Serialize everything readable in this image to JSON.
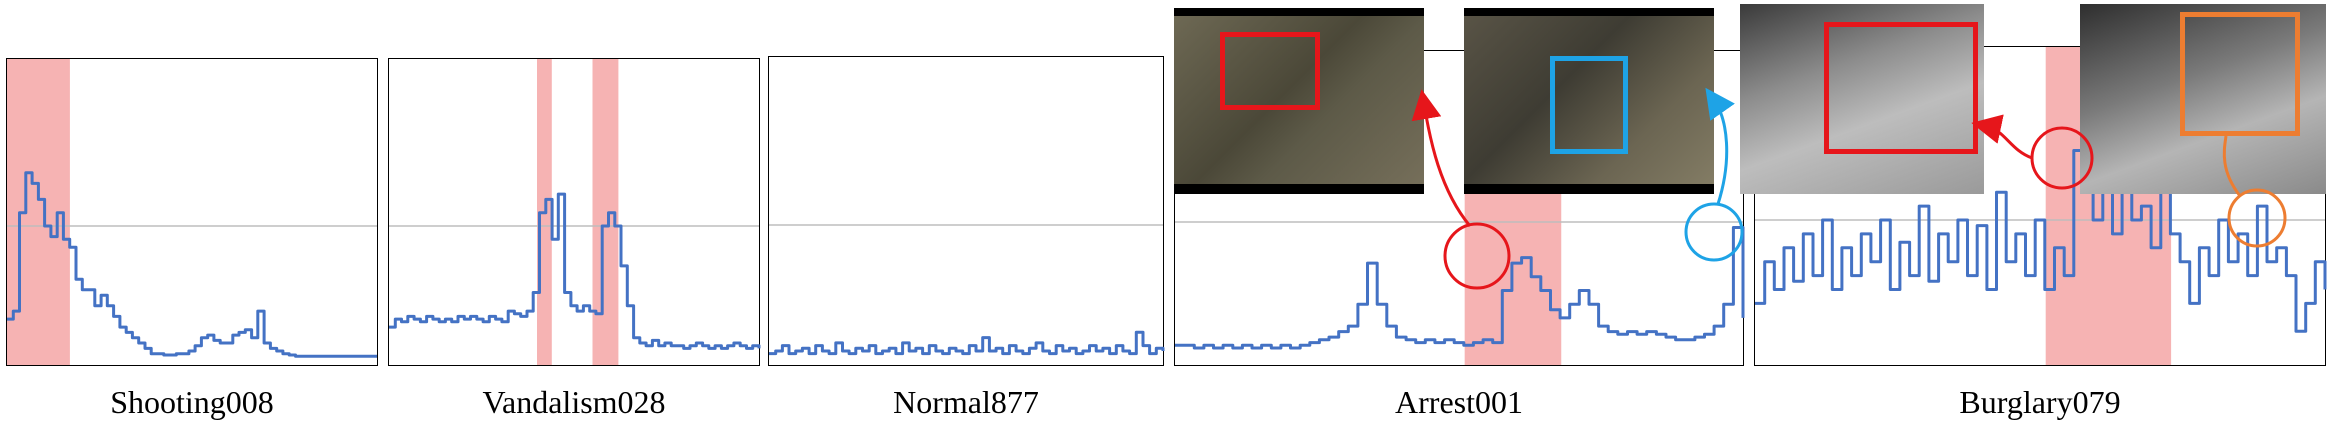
{
  "chart_data": [
    {
      "type": "line",
      "caption": "Shooting008",
      "ylim": [
        0,
        1
      ],
      "threshold": 0.5,
      "highlight_ranges": [
        [
          0,
          0.17
        ]
      ],
      "series": [
        {
          "color": "#4472c4",
          "values": [
            0.15,
            0.18,
            0.55,
            0.7,
            0.66,
            0.6,
            0.5,
            0.46,
            0.55,
            0.45,
            0.42,
            0.3,
            0.26,
            0.26,
            0.2,
            0.24,
            0.2,
            0.16,
            0.12,
            0.1,
            0.08,
            0.06,
            0.04,
            0.02,
            0.02,
            0.015,
            0.015,
            0.02,
            0.02,
            0.03,
            0.05,
            0.08,
            0.09,
            0.07,
            0.06,
            0.06,
            0.09,
            0.1,
            0.11,
            0.08,
            0.18,
            0.06,
            0.04,
            0.03,
            0.02,
            0.015,
            0.01,
            0.01,
            0.01,
            0.01,
            0.01,
            0.01,
            0.01,
            0.01,
            0.01,
            0.01,
            0.01,
            0.01,
            0.01,
            0.01
          ]
        }
      ]
    },
    {
      "type": "line",
      "caption": "Vandalism028",
      "ylim": [
        0,
        1
      ],
      "threshold": 0.5,
      "highlight_ranges": [
        [
          0.4,
          0.44
        ],
        [
          0.55,
          0.62
        ]
      ],
      "series": [
        {
          "color": "#4472c4",
          "values": [
            0.12,
            0.15,
            0.14,
            0.16,
            0.15,
            0.14,
            0.16,
            0.15,
            0.14,
            0.15,
            0.14,
            0.16,
            0.15,
            0.16,
            0.15,
            0.14,
            0.16,
            0.15,
            0.14,
            0.18,
            0.17,
            0.16,
            0.18,
            0.25,
            0.55,
            0.6,
            0.45,
            0.62,
            0.25,
            0.2,
            0.18,
            0.2,
            0.18,
            0.17,
            0.5,
            0.55,
            0.5,
            0.35,
            0.2,
            0.08,
            0.06,
            0.05,
            0.07,
            0.05,
            0.06,
            0.05,
            0.05,
            0.04,
            0.05,
            0.06,
            0.05,
            0.04,
            0.05,
            0.04,
            0.05,
            0.06,
            0.05,
            0.04,
            0.05,
            0.04
          ]
        }
      ]
    },
    {
      "type": "line",
      "caption": "Normal877",
      "ylim": [
        0,
        1
      ],
      "threshold": 0.5,
      "highlight_ranges": [],
      "series": [
        {
          "color": "#4472c4",
          "values": [
            0.02,
            0.03,
            0.05,
            0.02,
            0.03,
            0.04,
            0.02,
            0.05,
            0.03,
            0.02,
            0.06,
            0.03,
            0.02,
            0.04,
            0.03,
            0.05,
            0.02,
            0.03,
            0.04,
            0.02,
            0.06,
            0.03,
            0.04,
            0.02,
            0.05,
            0.03,
            0.02,
            0.04,
            0.03,
            0.02,
            0.05,
            0.03,
            0.08,
            0.03,
            0.04,
            0.02,
            0.05,
            0.03,
            0.02,
            0.04,
            0.06,
            0.03,
            0.02,
            0.05,
            0.03,
            0.04,
            0.02,
            0.03,
            0.05,
            0.03,
            0.04,
            0.02,
            0.05,
            0.03,
            0.02,
            0.1,
            0.05,
            0.02,
            0.04,
            0.03
          ]
        }
      ]
    },
    {
      "type": "line",
      "caption": "Arrest001",
      "ylim": [
        0,
        1
      ],
      "threshold": 0.5,
      "highlight_ranges": [
        [
          0.51,
          0.68
        ]
      ],
      "series": [
        {
          "color": "#4472c4",
          "values": [
            0.05,
            0.05,
            0.04,
            0.05,
            0.04,
            0.05,
            0.04,
            0.05,
            0.04,
            0.05,
            0.04,
            0.05,
            0.04,
            0.05,
            0.06,
            0.07,
            0.08,
            0.1,
            0.12,
            0.2,
            0.35,
            0.2,
            0.12,
            0.08,
            0.07,
            0.06,
            0.07,
            0.06,
            0.07,
            0.06,
            0.05,
            0.06,
            0.07,
            0.06,
            0.25,
            0.35,
            0.37,
            0.3,
            0.25,
            0.18,
            0.15,
            0.2,
            0.25,
            0.2,
            0.12,
            0.1,
            0.09,
            0.1,
            0.09,
            0.1,
            0.09,
            0.08,
            0.07,
            0.07,
            0.08,
            0.09,
            0.12,
            0.2,
            0.48,
            0.15
          ]
        }
      ]
    },
    {
      "type": "line",
      "caption": "Burglary079",
      "ylim": [
        0,
        1
      ],
      "threshold": 0.5,
      "highlight_ranges": [
        [
          0.51,
          0.73
        ]
      ],
      "series": [
        {
          "color": "#4472c4",
          "values": [
            0.2,
            0.35,
            0.25,
            0.4,
            0.28,
            0.45,
            0.3,
            0.5,
            0.25,
            0.4,
            0.3,
            0.45,
            0.35,
            0.5,
            0.25,
            0.42,
            0.3,
            0.55,
            0.28,
            0.45,
            0.35,
            0.5,
            0.3,
            0.48,
            0.25,
            0.6,
            0.35,
            0.45,
            0.3,
            0.5,
            0.25,
            0.4,
            0.3,
            0.75,
            0.6,
            0.5,
            0.7,
            0.45,
            0.65,
            0.5,
            0.55,
            0.4,
            0.6,
            0.45,
            0.35,
            0.2,
            0.4,
            0.3,
            0.5,
            0.35,
            0.45,
            0.3,
            0.55,
            0.35,
            0.4,
            0.3,
            0.1,
            0.2,
            0.35,
            0.25
          ]
        }
      ]
    }
  ]
}
